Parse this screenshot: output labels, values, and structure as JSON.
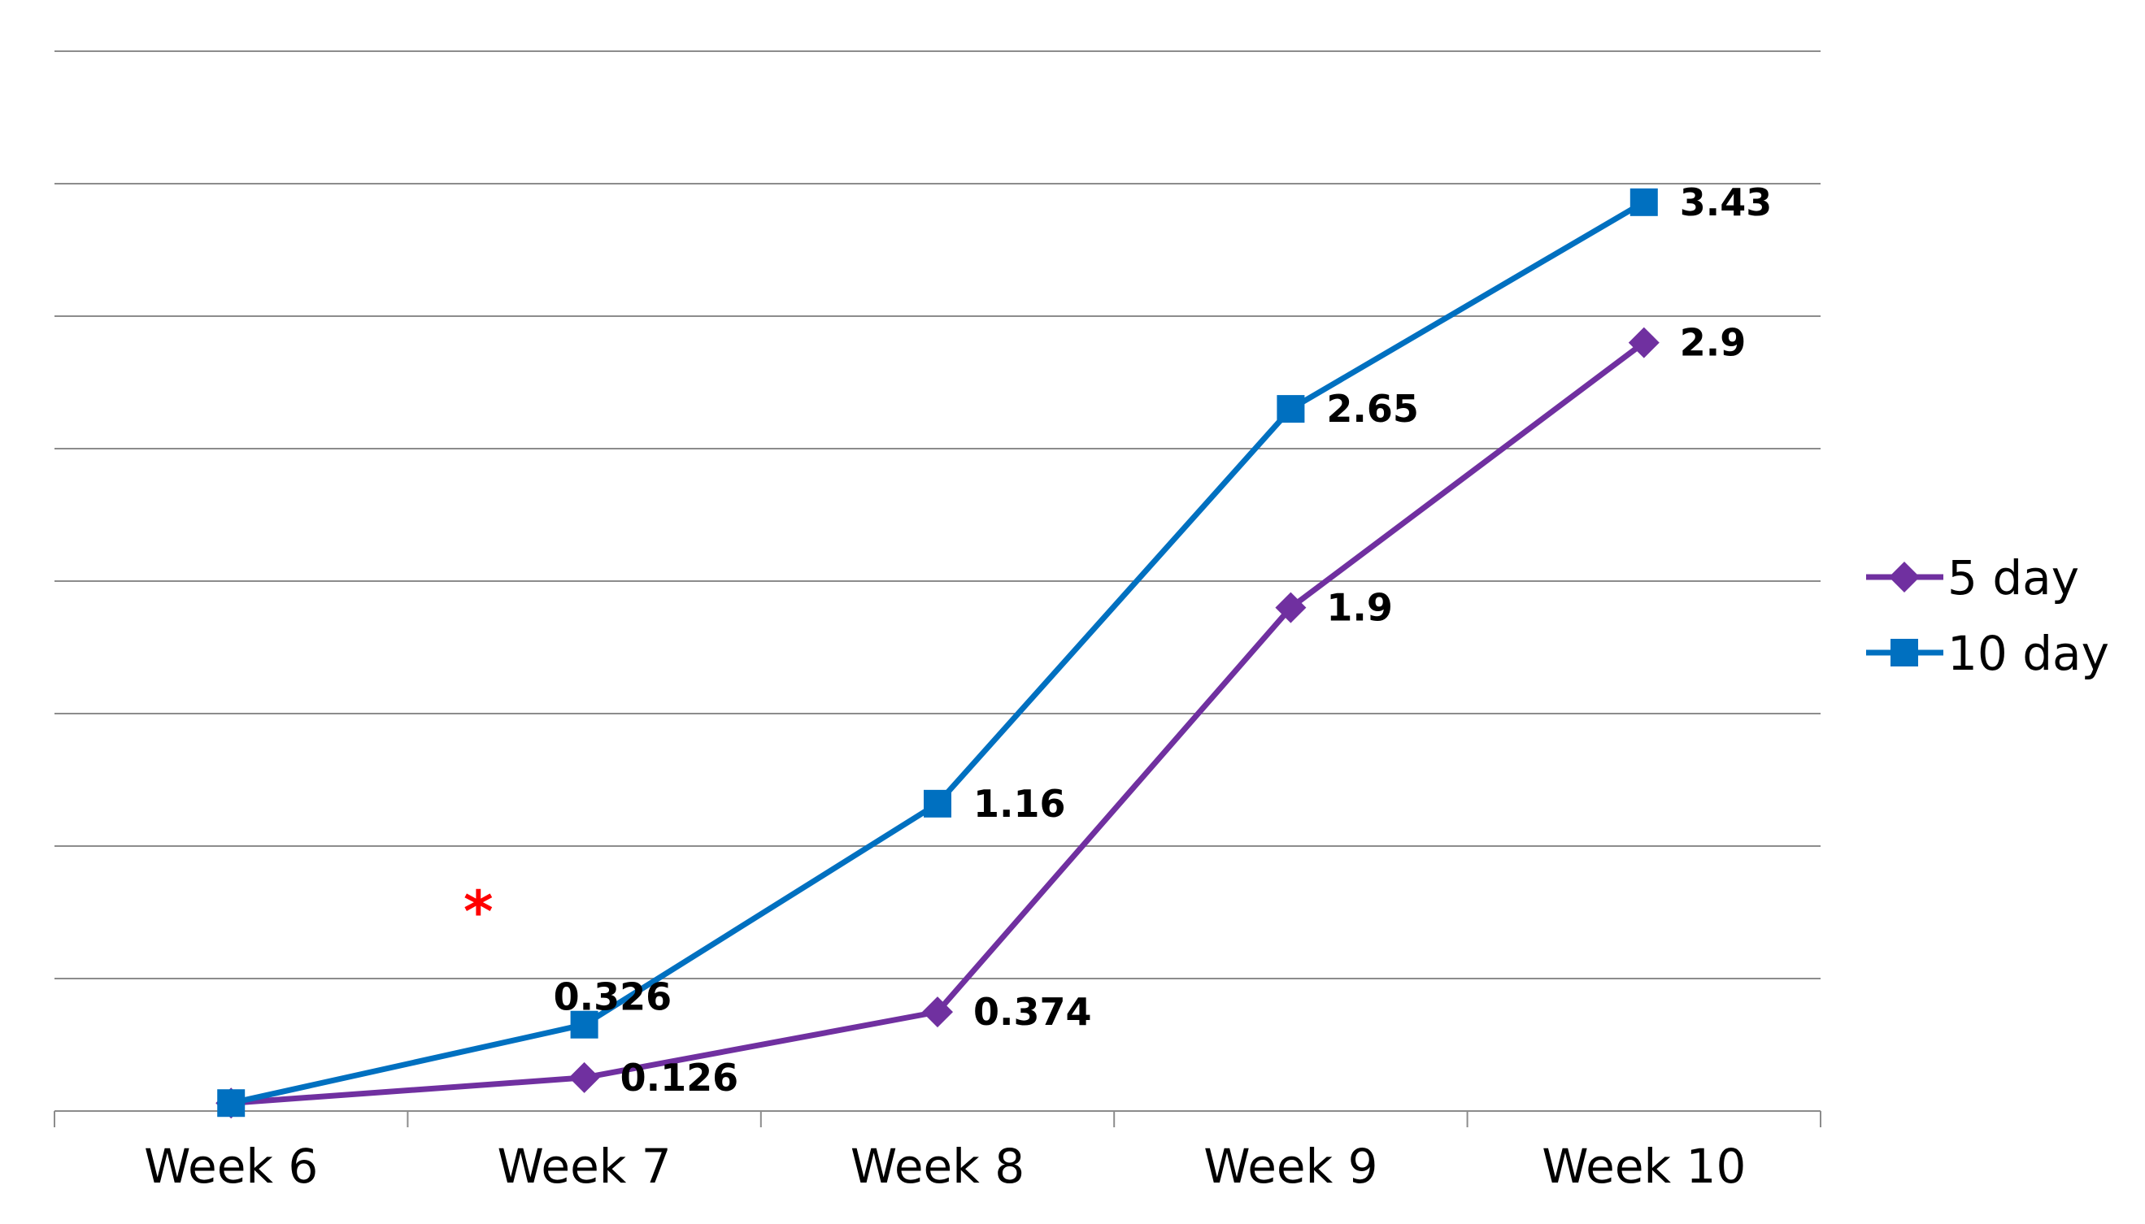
{
  "chart_data": {
    "type": "line",
    "categories": [
      "Week 6",
      "Week 7",
      "Week 8",
      "Week 9",
      "Week 10"
    ],
    "series": [
      {
        "name": "5 day",
        "values": [
          0.03,
          0.126,
          0.374,
          1.9,
          2.9
        ],
        "labels": [
          "",
          "0.126",
          "0.374",
          "1.9",
          "2.9"
        ],
        "color": "#7030a0",
        "marker": "diamond"
      },
      {
        "name": "10 day",
        "values": [
          0.03,
          0.326,
          1.16,
          2.65,
          3.43
        ],
        "labels": [
          "",
          "0.326",
          "1.16",
          "2.65",
          "3.43"
        ],
        "color": "#0070c0",
        "marker": "square"
      }
    ],
    "ylim": [
      0,
      4
    ],
    "grid": true,
    "legend": "right",
    "annotations": [
      {
        "text": "*",
        "color": "#ff0000",
        "category_position": 0.7,
        "y": 0.8
      }
    ]
  }
}
